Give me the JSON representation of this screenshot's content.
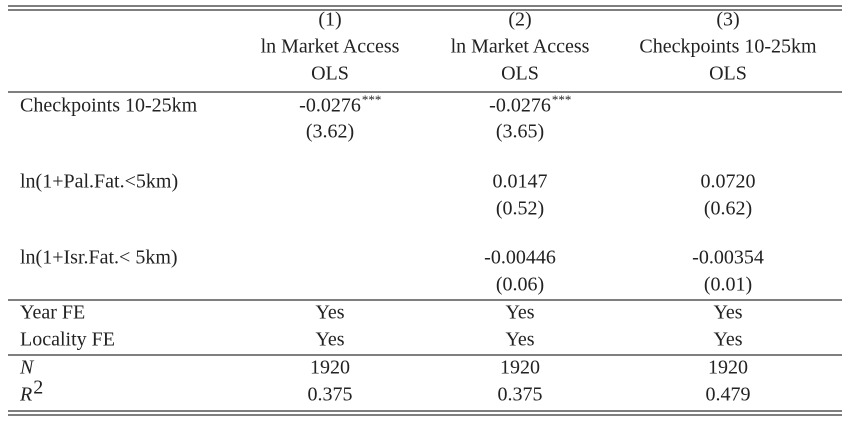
{
  "table": {
    "columns": [
      {
        "number": "(1)",
        "dependent": "ln Market Access",
        "method": "OLS"
      },
      {
        "number": "(2)",
        "dependent": "ln Market Access",
        "method": "OLS"
      },
      {
        "number": "(3)",
        "dependent": "Checkpoints 10-25km",
        "method": "OLS"
      }
    ],
    "regressors": [
      {
        "label": "Checkpoints 10-25km",
        "cells": [
          {
            "coef": "-0.0276",
            "stars": "***",
            "se": "(3.62)"
          },
          {
            "coef": "-0.0276",
            "stars": "***",
            "se": "(3.65)"
          },
          null
        ]
      },
      {
        "label": "ln(1+Pal.Fat.<5km)",
        "cells": [
          null,
          {
            "coef": "0.0147",
            "se": "(0.52)"
          },
          {
            "coef": "0.0720",
            "se": "(0.62)"
          }
        ]
      },
      {
        "label": "ln(1+Isr.Fat.< 5km)",
        "cells": [
          null,
          {
            "coef": "-0.00446",
            "se": "(0.06)"
          },
          {
            "coef": "-0.00354",
            "se": "(0.01)"
          }
        ]
      }
    ],
    "controls": [
      {
        "label": "Year FE",
        "cells": [
          "Yes",
          "Yes",
          "Yes"
        ]
      },
      {
        "label": "Locality FE",
        "cells": [
          "Yes",
          "Yes",
          "Yes"
        ]
      }
    ],
    "statistics": [
      {
        "label": "N",
        "cells": [
          "1920",
          "1920",
          "1920"
        ]
      },
      {
        "label": "R",
        "sup": "2",
        "cells": [
          "0.375",
          "0.375",
          "0.479"
        ]
      }
    ]
  }
}
